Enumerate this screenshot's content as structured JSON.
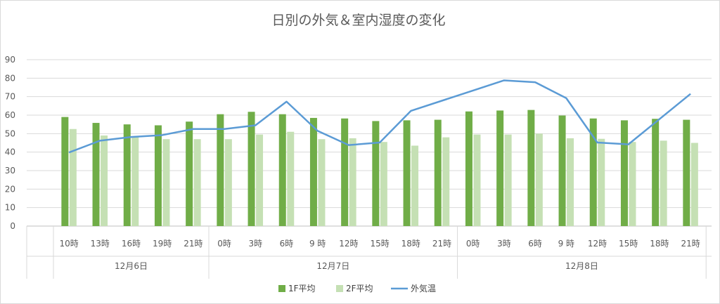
{
  "chart_data": {
    "type": "bar",
    "title": "日別の外気＆室内湿度の変化",
    "ylim": [
      0,
      90
    ],
    "y_ticks": [
      0,
      10,
      20,
      30,
      40,
      50,
      60,
      70,
      80,
      90
    ],
    "grid": true,
    "legend_position": "bottom",
    "categories": [
      "10時",
      "13時",
      "16時",
      "19時",
      "21時",
      "0時",
      "3時",
      "6時",
      "9 時",
      "12時",
      "15時",
      "18時",
      "21時",
      "0時",
      "3時",
      "6時",
      "9 時",
      "12時",
      "15時",
      "18時",
      "21時"
    ],
    "groups": [
      {
        "label": "12月6日",
        "count": 5
      },
      {
        "label": "12月7日",
        "count": 8
      },
      {
        "label": "12月8日",
        "count": 8
      }
    ],
    "series": [
      {
        "name": "1F平均",
        "type": "bar",
        "color": "#70ad47",
        "values": [
          59,
          55.8,
          55,
          54.5,
          56.5,
          60.5,
          61.8,
          60.5,
          58.5,
          58.2,
          56.8,
          57.2,
          57.5,
          62,
          62.5,
          62.8,
          59.8,
          58.2,
          57.2,
          58,
          57.5
        ]
      },
      {
        "name": "2F平均",
        "type": "bar",
        "color": "#c5e0b4",
        "values": [
          52.5,
          49,
          48.5,
          47,
          47,
          47,
          49.5,
          51,
          47,
          47.5,
          45.5,
          43.5,
          48,
          49.5,
          49.5,
          50,
          47.5,
          47.2,
          45.5,
          46.2,
          45
        ]
      },
      {
        "name": "外気温",
        "type": "line",
        "color": "#5b9bd5",
        "values": [
          39.8,
          46.2,
          48.2,
          49.2,
          52.5,
          52.5,
          54.5,
          67.3,
          51.5,
          43.8,
          45.2,
          62.3,
          null,
          null,
          78.8,
          77.8,
          69.2,
          45.2,
          44.2,
          null,
          71.5
        ]
      }
    ]
  }
}
